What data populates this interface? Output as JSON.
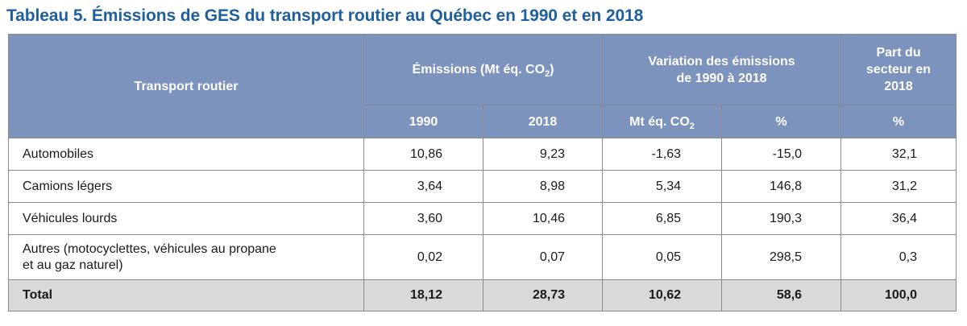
{
  "title": "Tableau 5. Émissions de GES du transport routier au Québec en 1990 et en 2018",
  "header": {
    "transport": "Transport routier",
    "emissions_prefix": "Émissions (Mt éq. CO",
    "emissions_sub": "2",
    "emissions_suffix": ")",
    "variation_line1": "Variation des émissions",
    "variation_line2": "de 1990 à 2018",
    "part_line1": "Part du",
    "part_line2": "secteur en",
    "part_line3": "2018",
    "year1990": "1990",
    "year2018": "2018",
    "mt_prefix": "Mt éq. CO",
    "mt_sub": "2",
    "pct_var": "%",
    "pct_part": "%"
  },
  "rows": [
    {
      "label": "Automobiles",
      "e1990": "10,86",
      "e2018": "9,23",
      "var_mt": "-1,63",
      "var_pct": "-15,0",
      "part": "32,1"
    },
    {
      "label": "Camions légers",
      "e1990": "3,64",
      "e2018": "8,98",
      "var_mt": "5,34",
      "var_pct": "146,8",
      "part": "31,2"
    },
    {
      "label": "Véhicules lourds",
      "e1990": "3,60",
      "e2018": "10,46",
      "var_mt": "6,85",
      "var_pct": "190,3",
      "part": "36,4"
    },
    {
      "label_line1": "Autres (motocyclettes, véhicules au propane",
      "label_line2": "et au gaz naturel)",
      "e1990": "0,02",
      "e2018": "0,07",
      "var_mt": "0,05",
      "var_pct": "298,5",
      "part": "0,3"
    }
  ],
  "total": {
    "label": "Total",
    "e1990": "18,12",
    "e2018": "28,73",
    "var_mt": "10,62",
    "var_pct": "58,6",
    "part": "100,0"
  },
  "colors": {
    "title": "#1f5f9e",
    "header_bg": "#7b93bd",
    "total_bg": "#d9d9d9"
  }
}
